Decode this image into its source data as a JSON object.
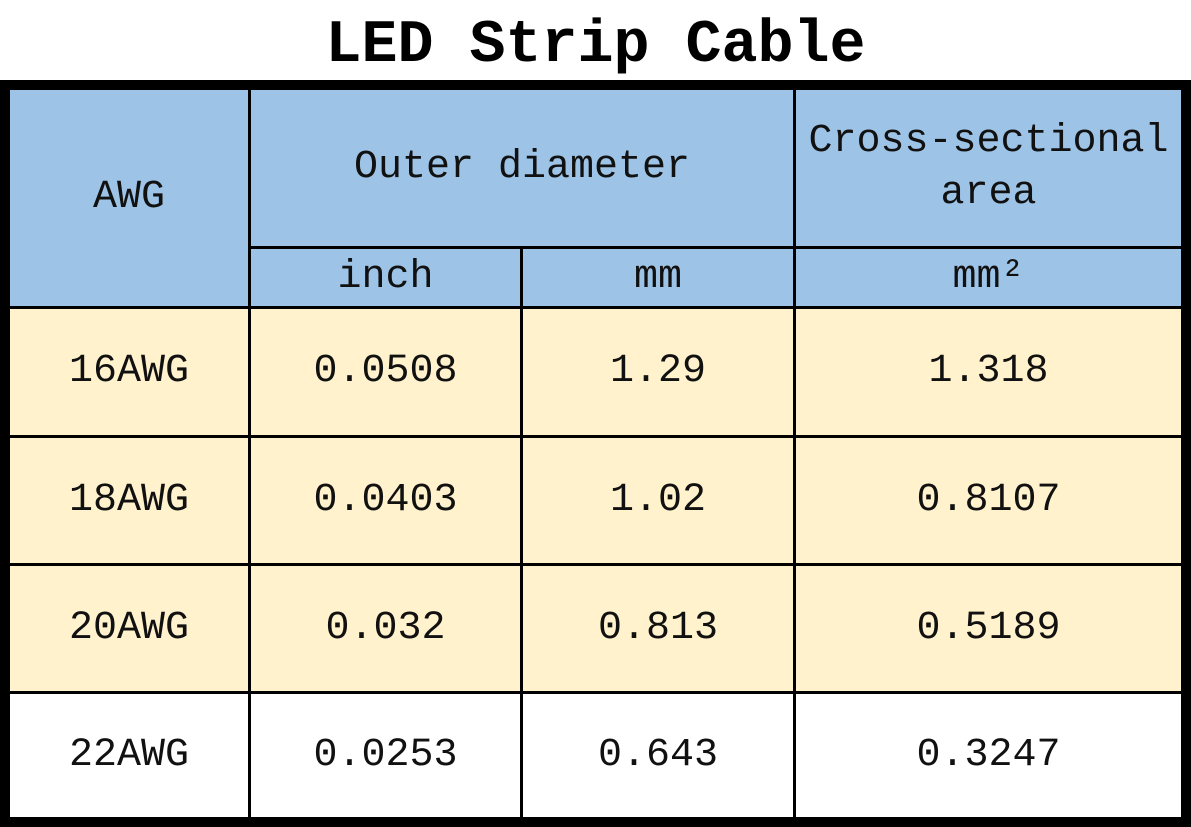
{
  "header": {
    "title": "LED Strip Cable"
  },
  "table": {
    "headers": {
      "awg": "AWG",
      "outer_diameter": "Outer diameter",
      "cross_section": "Cross-sectional area",
      "inch": "inch",
      "mm": "mm",
      "mm2": "mm²"
    },
    "rows": [
      [
        "16AWG",
        "0.0508",
        "1.29",
        "1.318"
      ],
      [
        "18AWG",
        "0.0403",
        "1.02",
        "0.8107"
      ],
      [
        "20AWG",
        "0.032",
        "0.813",
        "0.5189"
      ],
      [
        "22AWG",
        "0.0253",
        "0.643",
        "0.3247"
      ]
    ]
  }
}
